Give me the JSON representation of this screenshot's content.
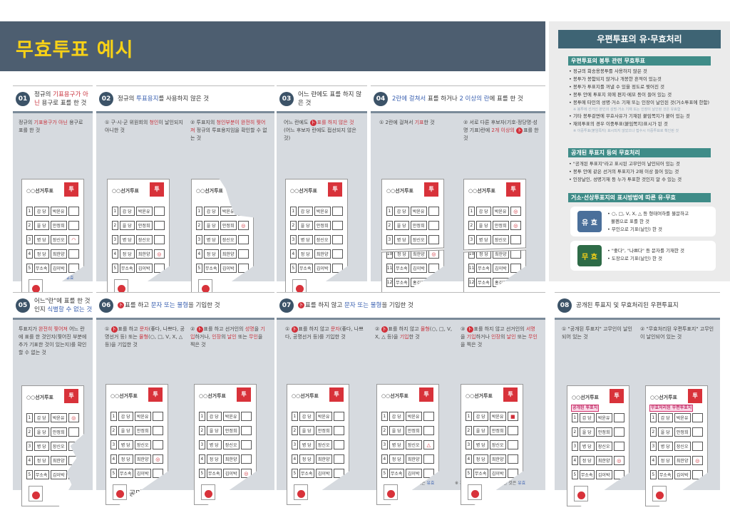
{
  "title": "무효투표 예시",
  "colors": {
    "header": "#4d5e70",
    "title": "#f7d117",
    "red": "#c8323c",
    "blue": "#3a60b0",
    "valid": "#4a6f9a",
    "invalid": "#2e6b47"
  },
  "ballot": {
    "title": "○○선거투표",
    "stamp": "투",
    "seal_label": "투표관리관",
    "rows": [
      {
        "n": "1",
        "p": "갑 당",
        "c": "박윤유"
      },
      {
        "n": "2",
        "p": "을 당",
        "c": "안정희"
      },
      {
        "n": "3",
        "p": "병 당",
        "c": "장신오"
      },
      {
        "n": "4",
        "p": "정 당",
        "c": "최한양"
      },
      {
        "n": "5",
        "p": "무소속",
        "c": "김이박"
      },
      {
        "n": "10",
        "p": "정 당",
        "c": "최한양"
      },
      {
        "n": "11",
        "p": "무소속",
        "c": "김이박"
      },
      {
        "n": "12",
        "p": "무소속",
        "c": "홍길정"
      }
    ]
  },
  "sections": [
    {
      "num": "01",
      "title": [
        {
          "t": "정규의 "
        },
        {
          "t": "기표용구가 아닌",
          "c": "r"
        },
        {
          "t": " 용구로 표를 한 것"
        }
      ],
      "items": [
        [
          {
            "t": "정규의 "
          },
          {
            "t": "기표용구가 아닌",
            "c": "r"
          },
          {
            "t": " 용구로 표를 한 것"
          }
        ]
      ],
      "notes": [
        [
          {
            "t": "※ 거소투표의 경우에는 "
          },
          {
            "t": "유효",
            "c": "b"
          }
        ]
      ]
    },
    {
      "num": "02",
      "title": [
        {
          "t": "정규의 "
        },
        {
          "t": "투표용지",
          "c": "b"
        },
        {
          "t": "를 사용하지 않은 것"
        }
      ],
      "items": [
        [
          {
            "t": "① 구·시·군 위원회의 "
          },
          {
            "t": "청인",
            "c": "r"
          },
          {
            "t": "이 날인되지 아니한 것"
          }
        ],
        [
          {
            "t": "② 투표지의 "
          },
          {
            "t": "청인부분이 완전히 찢어져",
            "c": "r"
          },
          {
            "t": " 정규의 투표용지임을 확인할 수 없는 것"
          }
        ]
      ]
    },
    {
      "num": "03",
      "title": [
        {
          "t": "어느 란에도 표를 하지 않은 것"
        }
      ],
      "items": [
        [
          {
            "t": "어느 란에도 "
          },
          {
            "icon": "stamp-mark-icon"
          },
          {
            "t": "표를 하지 않은 것",
            "c": "r"
          },
          {
            "t": " (어느 후보자 란에도 접선되지 않은 것)"
          }
        ]
      ]
    },
    {
      "num": "04",
      "title": [
        {
          "t": "2란에 걸쳐서",
          "c": "b"
        },
        {
          "t": " 표를 하거나 "
        },
        {
          "t": "2 이상의 란",
          "c": "b"
        },
        {
          "t": "에 표를 한 것"
        }
      ],
      "items": [
        [
          {
            "t": "① 2란에 걸쳐서 "
          },
          {
            "t": "기표",
            "c": "r"
          },
          {
            "t": "한 것"
          }
        ],
        [
          {
            "t": "② 서로 다른 후보자(기호·정당명·성명 기표)란에 "
          },
          {
            "t": "2개 이상의",
            "c": "r"
          },
          {
            "t": " "
          },
          {
            "icon": "stamp-mark-icon"
          },
          {
            "t": "표를 한 것"
          }
        ]
      ]
    },
    {
      "num": "05",
      "title": [
        {
          "t": "어느\"란\"에 표를 한 것인지 "
        },
        {
          "t": "식별할 수 없는 것",
          "c": "b"
        }
      ],
      "items": [
        [
          {
            "t": "투표지가 "
          },
          {
            "t": "완전히 찢어져",
            "c": "r"
          },
          {
            "t": " 어느 란에 표를 한 것인지(찢어진 부분에 추가 기표한 것이 있는지)를 확인할 수 없는 것"
          }
        ]
      ]
    },
    {
      "num": "06",
      "title": [
        {
          "icon": "stamp-mark-icon"
        },
        {
          "t": "표를 하고 "
        },
        {
          "t": "문자 또는 물형",
          "c": "b"
        },
        {
          "t": "을 기입한 것"
        }
      ],
      "items": [
        [
          {
            "t": "① "
          },
          {
            "icon": "stamp-mark-icon"
          },
          {
            "t": "표를 하고 "
          },
          {
            "t": "문자",
            "c": "r"
          },
          {
            "t": "(좋다, 나쁘다, 공명선거 등) 또는 "
          },
          {
            "t": "물형",
            "c": "r"
          },
          {
            "t": "(○, □, V, X, △ 등)을 기입한 것"
          }
        ],
        [
          {
            "t": "② "
          },
          {
            "icon": "stamp-mark-icon"
          },
          {
            "t": "표를 하고 선거인의 "
          },
          {
            "t": "성명",
            "c": "r"
          },
          {
            "t": "을 "
          },
          {
            "t": "기입",
            "c": "r"
          },
          {
            "t": "하거나, "
          },
          {
            "t": "인장",
            "c": "r"
          },
          {
            "t": "의 "
          },
          {
            "t": "날인",
            "c": "r"
          },
          {
            "t": " 또는 "
          },
          {
            "t": "무인",
            "c": "r"
          },
          {
            "t": "을 찍은 것"
          }
        ]
      ],
      "handwriting": "공명선거"
    },
    {
      "num": "07",
      "title": [
        {
          "icon": "stamp-mark-icon"
        },
        {
          "t": "표를 하지 않고 "
        },
        {
          "t": "문자 또는 물형",
          "c": "b"
        },
        {
          "t": "을 기입한 것"
        }
      ],
      "items": [
        [
          {
            "t": "① "
          },
          {
            "icon": "stamp-mark-icon"
          },
          {
            "t": "표를 하지 않고 "
          },
          {
            "t": "문자",
            "c": "r"
          },
          {
            "t": "(좋다, 나쁘다, 공명선거 등)를 기입한 것"
          }
        ],
        [
          {
            "t": "② "
          },
          {
            "icon": "stamp-mark-icon"
          },
          {
            "t": "표를 하지 않고 "
          },
          {
            "t": "물형",
            "c": "r"
          },
          {
            "t": "(○, □, V, X, △ 등)을 "
          },
          {
            "t": "기입",
            "c": "r"
          },
          {
            "t": "한 것"
          }
        ],
        [
          {
            "t": "③ "
          },
          {
            "icon": "stamp-mark-icon"
          },
          {
            "t": "표를 하지 않고 선거인의 "
          },
          {
            "t": "서명",
            "c": "r"
          },
          {
            "t": "을 "
          },
          {
            "t": "기입",
            "c": "r"
          },
          {
            "t": "하거나 "
          },
          {
            "t": "인장",
            "c": "r"
          },
          {
            "t": "의 "
          },
          {
            "t": "날인",
            "c": "r"
          },
          {
            "t": " 또는 "
          },
          {
            "t": "무인",
            "c": "r"
          },
          {
            "t": "을 찍은 것"
          }
        ]
      ],
      "notes": [
        [
          {
            "t": "※ 거소투표의 경우에는 "
          },
          {
            "t": "유효",
            "c": "b"
          }
        ],
        [
          {
            "t": "※ 거소투표의 경우 "
          },
          {
            "t": "무인",
            "c": "r"
          },
          {
            "t": "을 한 것은 "
          },
          {
            "t": "유효",
            "c": "b"
          }
        ]
      ]
    },
    {
      "num": "08",
      "title": [
        {
          "t": "공개된 투표지 및 무효처리된 우편투표지"
        }
      ],
      "items": [
        [
          {
            "t": "① \"공개된 투표지\" 고무인이 날인되어 있는 것"
          }
        ],
        [
          {
            "t": "② \"무효처리된 우편투표지\" 고무인이 날인되어 있는 것"
          }
        ]
      ],
      "overlays": [
        "공개된 투표지",
        "무효처리된 우편투표지"
      ]
    }
  ],
  "right": {
    "title": "우편투표의 유·무효처리",
    "envelope": {
      "heading": "우편투표의 봉투 관련 무효투표",
      "items": [
        "• 정규의 회송용봉투를 사용하지 않은 것",
        "• 봉투가 봉함되지 않거나 개봉한 흔적이 있는것",
        "• 봉투가 투표지를 꺼낼 수 있을 정도로 찢어진 것",
        "• 봉투 안에 투표지 외에 편지·메모 등이 들어 있는 것",
        "• 봉투에 타인의 성명·거소 기재 또는 인장이 날인된 것(거소투표에 한함)"
      ],
      "note1": "※ 봉투에 선거인 본인의 성명·거소 기재 또는 인장이 날인된 것은 유효함",
      "items2": [
        "• 기타 봉투겉면에 무효사유가 기재된 붙임쪽지가 붙어 있는 것",
        "• 재외투표의 경우 이중투표(붙임쪽지)표시가 된 것"
      ],
      "note2": "※ 이중투표(붙임쪽지) 표시되지 않았으나 접수시 이중투표로 확인된 것"
    },
    "public": {
      "heading": "공개된 투표지 등의 무효처리",
      "items": [
        "• \"공개된 투표지\"라고 표시된 고무인이 날인되어 있는 것",
        "• 봉투 안에 같은 선거의 투표지가 2매 이상 들어 있는 것",
        "• 인장날인, 성명기재 등 누가 투표한 것인지 알 수 있는 것"
      ]
    },
    "marking": {
      "heading": "거소·선상투표지의 표시방법에 따른 유·무효",
      "valid": {
        "label": "유 효",
        "items": [
          "• ○, □, V, X, △ 등 형태여하를 불문하고",
          "  볼펜으로 표를 한 것",
          "• 무인으로 기표(날인) 한 것"
        ]
      },
      "invalid": {
        "label": "무 효",
        "items": [
          "• \"좋다\", \"나쁘다\" 등 문자를 기재한 것",
          "• 도장으로 기표(날인) 한 것"
        ]
      }
    }
  }
}
